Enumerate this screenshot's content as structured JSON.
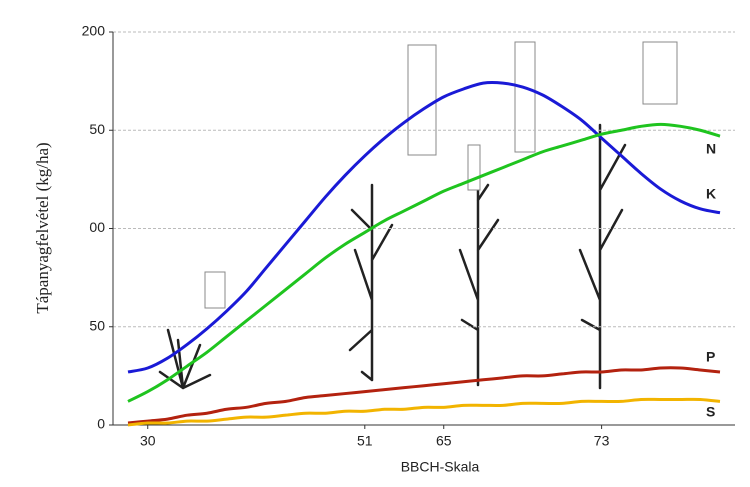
{
  "chart_data": {
    "type": "line",
    "xlabel": "BBCH-Skala",
    "ylabel": "Tápanyagfelvétel (kg/ha)",
    "categories": [
      null,
      "30",
      null,
      null,
      null,
      null,
      null,
      null,
      null,
      null,
      null,
      null,
      "51",
      null,
      null,
      null,
      "65",
      null,
      null,
      null,
      null,
      null,
      null,
      null,
      "73",
      null,
      null,
      null,
      null,
      null,
      null
    ],
    "ylim": [
      0,
      200
    ],
    "yticks": [
      0,
      50,
      {
        "value": 100,
        "label": "00"
      },
      {
        "value": 150,
        "label": "50"
      },
      200
    ],
    "grid": true,
    "series": [
      {
        "name": "N",
        "color": "#1a1ad6",
        "values": [
          27,
          29,
          34,
          41,
          49,
          58,
          68,
          80,
          92,
          104,
          116,
          127,
          137,
          146,
          154,
          161,
          167,
          171,
          174,
          174,
          172,
          168,
          162,
          155,
          146,
          137,
          128,
          120,
          114,
          110,
          108
        ]
      },
      {
        "name": "K",
        "color": "#1fc41f",
        "values": [
          12,
          17,
          23,
          30,
          37,
          45,
          53,
          61,
          69,
          77,
          85,
          92,
          98,
          104,
          109,
          114,
          119,
          123,
          127,
          131,
          135,
          139,
          142,
          145,
          148,
          150,
          152,
          153,
          152,
          150,
          147
        ]
      },
      {
        "name": "P",
        "color": "#b3220f",
        "values": [
          1,
          2,
          3,
          5,
          6,
          8,
          9,
          11,
          12,
          14,
          15,
          16,
          17,
          18,
          19,
          20,
          21,
          22,
          23,
          24,
          25,
          25,
          26,
          27,
          27,
          28,
          28,
          29,
          29,
          28,
          27
        ]
      },
      {
        "name": "S",
        "color": "#f2b400",
        "values": [
          0,
          1,
          1,
          2,
          2,
          3,
          4,
          4,
          5,
          6,
          6,
          7,
          7,
          8,
          8,
          9,
          9,
          10,
          10,
          10,
          11,
          11,
          11,
          12,
          12,
          12,
          13,
          13,
          13,
          13,
          12
        ]
      }
    ]
  }
}
